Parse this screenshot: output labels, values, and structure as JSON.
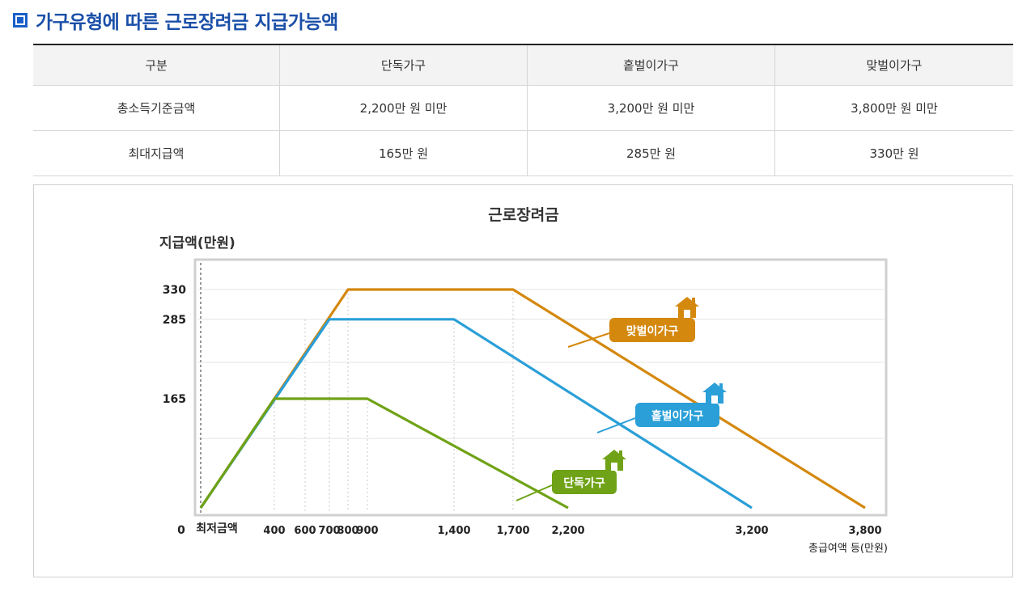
{
  "section_title": "가구유형에 따른 근로장려금 지급가능액",
  "table": {
    "headers": [
      "구분",
      "단독가구",
      "홑벌이가구",
      "맞벌이가구"
    ],
    "rows": [
      [
        "총소득기준금액",
        "2,200만 원 미만",
        "3,200만 원 미만",
        "3,800만 원 미만"
      ],
      [
        "최대지급액",
        "165만 원",
        "285만 원",
        "330만 원"
      ]
    ]
  },
  "chart_data": {
    "type": "line",
    "title": "근로장려금",
    "ylabel": "지급액(만원)",
    "xlabel": "총급여액 등(만원)",
    "x_origin_label": "0",
    "x_min_label": "최저금액",
    "x_ticks": [
      400,
      600,
      700,
      800,
      900,
      1400,
      1700,
      2200,
      3200,
      3800
    ],
    "x_tick_labels": [
      "400",
      "600",
      "700",
      "800",
      "900",
      "1,400",
      "1,700",
      "2,200",
      "3,200",
      "3,800"
    ],
    "y_ticks": [
      165,
      285,
      330
    ],
    "y_tick_labels": [
      "165",
      "285",
      "330"
    ],
    "ylim": [
      0,
      370
    ],
    "grid": true,
    "colors": {
      "맞벌이가구": "#d4880e",
      "홑벌이가구": "#2a9fd8",
      "단독가구": "#6fa216"
    },
    "series": [
      {
        "name": "맞벌이가구",
        "x": [
          0,
          800,
          1700,
          3800
        ],
        "y": [
          0,
          330,
          330,
          0
        ]
      },
      {
        "name": "홑벌이가구",
        "x": [
          0,
          700,
          1400,
          3200
        ],
        "y": [
          0,
          285,
          285,
          0
        ]
      },
      {
        "name": "단독가구",
        "x": [
          0,
          400,
          900,
          2200
        ],
        "y": [
          0,
          165,
          165,
          0
        ]
      }
    ]
  }
}
